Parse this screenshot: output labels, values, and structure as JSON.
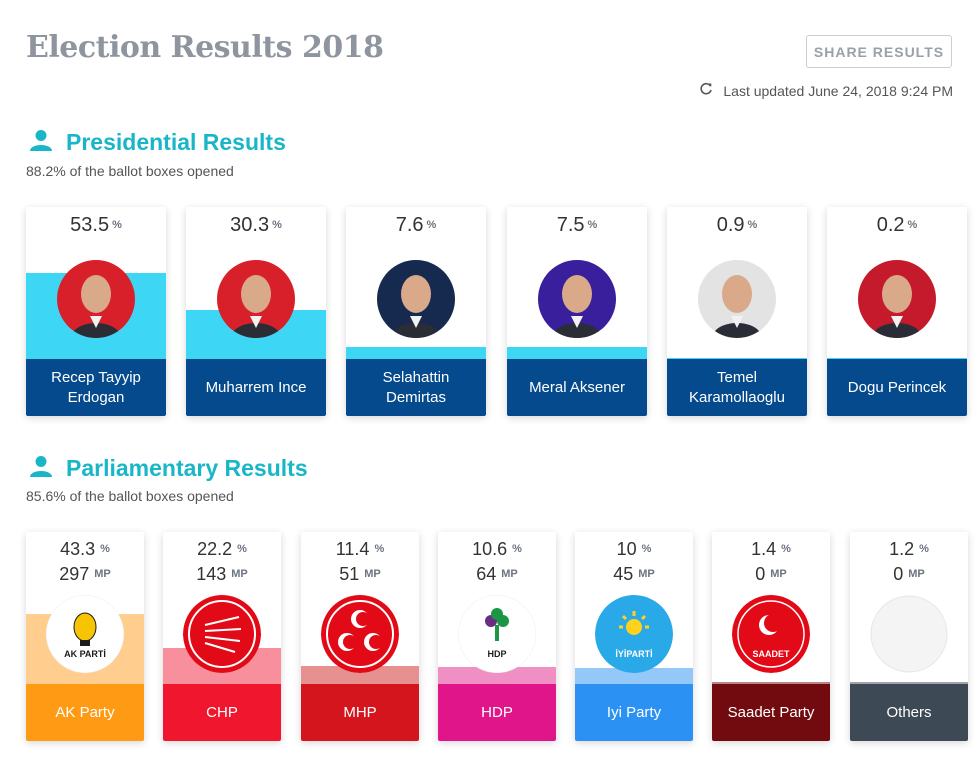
{
  "header": {
    "title": "Election Results 2018",
    "share_label": "SHARE RESULTS",
    "updated": "Last updated June 24, 2018 9:24 PM",
    "icons": [
      "refresh-icon"
    ]
  },
  "presidential": {
    "title": "Presidential Results",
    "subtitle": "88.2% of the ballot boxes opened",
    "pct_symbol": "%",
    "fill_color": "#3dd7f5",
    "name_color": "#044a8c",
    "candidates": [
      {
        "value": "53.5",
        "name": "Recep Tayyip Erdogan",
        "share": 0.535
      },
      {
        "value": "30.3",
        "name": "Muharrem Ince",
        "share": 0.303
      },
      {
        "value": "7.6",
        "name": "Selahattin Demirtas",
        "share": 0.076
      },
      {
        "value": "7.5",
        "name": "Meral Aksener",
        "share": 0.075
      },
      {
        "value": "0.9",
        "name": "Temel Karamollaoglu",
        "share": 0.009
      },
      {
        "value": "0.2",
        "name": "Dogu Perincek",
        "share": 0.002
      }
    ]
  },
  "parliamentary": {
    "title": "Parliamentary Results",
    "subtitle": "85.6% of the ballot boxes opened",
    "pct_symbol": "%",
    "mp_label": "MP",
    "parties": [
      {
        "pct": "43.3",
        "mp": "297",
        "name": "AK Party",
        "logo_text": "AK PARTİ",
        "share": 0.433,
        "color": "#ff9a15",
        "fill": "#ffcd8e"
      },
      {
        "pct": "22.2",
        "mp": "143",
        "name": "CHP",
        "logo_text": "",
        "share": 0.222,
        "color": "#f0162e",
        "fill": "#f7909c"
      },
      {
        "pct": "11.4",
        "mp": "51",
        "name": "MHP",
        "logo_text": "",
        "share": 0.114,
        "color": "#d4151d",
        "fill": "#e6908f"
      },
      {
        "pct": "10.6",
        "mp": "64",
        "name": "HDP",
        "logo_text": "HDP",
        "share": 0.106,
        "color": "#e0158a",
        "fill": "#ef8fc4"
      },
      {
        "pct": "10",
        "mp": "45",
        "name": "Iyi Party",
        "logo_text": "İYİPARTİ",
        "share": 0.1,
        "color": "#2b91f3",
        "fill": "#93c8f9"
      },
      {
        "pct": "1.4",
        "mp": "0",
        "name": "Saadet Party",
        "logo_text": "SAADET",
        "share": 0.014,
        "color": "#720b0f",
        "fill": "#b88587"
      },
      {
        "pct": "1.2",
        "mp": "0",
        "name": "Others",
        "logo_text": "",
        "share": 0.012,
        "color": "#3d4a56",
        "fill": "#9ea4aa"
      }
    ]
  }
}
